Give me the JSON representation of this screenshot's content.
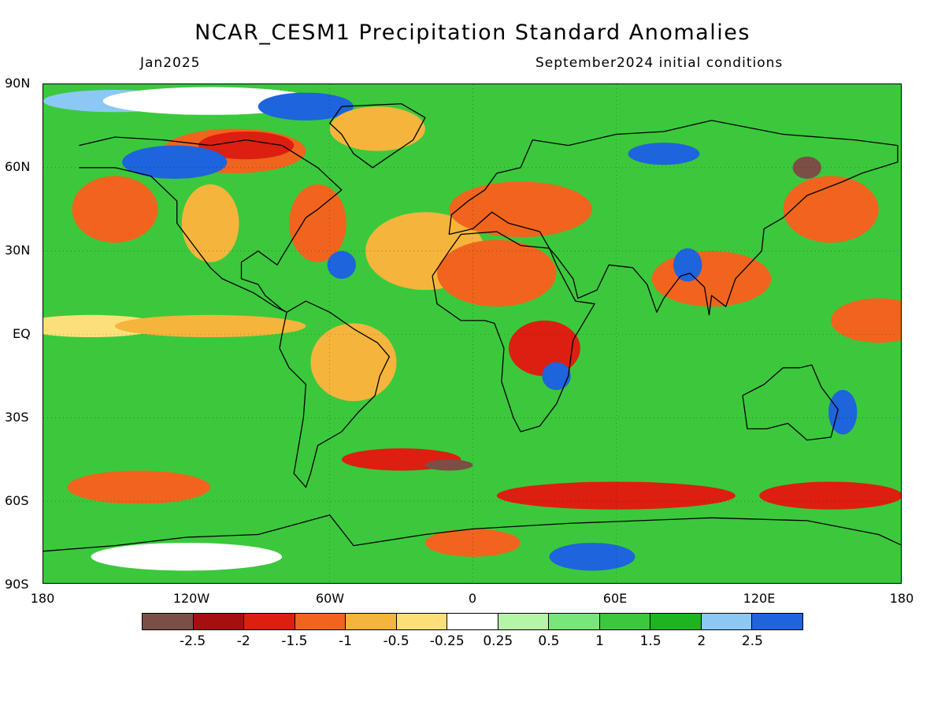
{
  "title": "NCAR_CESM1 Precipitation Standard Anomalies",
  "subtitle_left": "Jan2025",
  "subtitle_right": "September2024 initial conditions",
  "lat_labels": [
    "90N",
    "60N",
    "30N",
    "EQ",
    "30S",
    "60S",
    "90S"
  ],
  "lon_labels": [
    "180",
    "120W",
    "60W",
    "0",
    "60E",
    "120E",
    "180"
  ],
  "colorbar": {
    "colors": [
      "#7b4f46",
      "#a50f0f",
      "#dc1f10",
      "#f0641e",
      "#f5b43c",
      "#fbe07a",
      "#ffffff",
      "#b4f5a8",
      "#78e678",
      "#3cc83c",
      "#1eb41e",
      "#8cc8f5",
      "#1e64dc"
    ],
    "labels": [
      "-2.5",
      "-2",
      "-1.5",
      "-1",
      "-0.5",
      "-0.25",
      "0.25",
      "0.5",
      "1",
      "1.5",
      "2",
      "2.5"
    ]
  },
  "map": {
    "projection": "equirectangular",
    "lon_range": [
      -180,
      180
    ],
    "lat_range": [
      -90,
      90
    ],
    "background_color": "#3cc83c",
    "anomaly_regions": [
      {
        "lon": -150,
        "lat": 84,
        "rx": 30,
        "ry": 4,
        "color": "#8cc8f5"
      },
      {
        "lon": -110,
        "lat": 84,
        "rx": 45,
        "ry": 5,
        "color": "#ffffff"
      },
      {
        "lon": -70,
        "lat": 82,
        "rx": 20,
        "ry": 5,
        "color": "#1e64dc"
      },
      {
        "lon": -40,
        "lat": 74,
        "rx": 20,
        "ry": 8,
        "color": "#f5b43c"
      },
      {
        "lon": -100,
        "lat": 66,
        "rx": 30,
        "ry": 8,
        "color": "#f0641e"
      },
      {
        "lon": -95,
        "lat": 68,
        "rx": 20,
        "ry": 5,
        "color": "#dc1f10"
      },
      {
        "lon": -125,
        "lat": 62,
        "rx": 22,
        "ry": 6,
        "color": "#1e64dc"
      },
      {
        "lon": -150,
        "lat": 45,
        "rx": 18,
        "ry": 12,
        "color": "#f0641e"
      },
      {
        "lon": -110,
        "lat": 40,
        "rx": 12,
        "ry": 14,
        "color": "#f5b43c"
      },
      {
        "lon": -65,
        "lat": 40,
        "rx": 12,
        "ry": 14,
        "color": "#f0641e"
      },
      {
        "lon": -20,
        "lat": 30,
        "rx": 25,
        "ry": 14,
        "color": "#f5b43c"
      },
      {
        "lon": 20,
        "lat": 45,
        "rx": 30,
        "ry": 10,
        "color": "#f0641e"
      },
      {
        "lon": 10,
        "lat": 22,
        "rx": 25,
        "ry": 12,
        "color": "#f0641e"
      },
      {
        "lon": -55,
        "lat": 25,
        "rx": 6,
        "ry": 5,
        "color": "#1e64dc"
      },
      {
        "lon": -160,
        "lat": 3,
        "rx": 30,
        "ry": 4,
        "color": "#fbe07a"
      },
      {
        "lon": -110,
        "lat": 3,
        "rx": 40,
        "ry": 4,
        "color": "#f5b43c"
      },
      {
        "lon": -50,
        "lat": -10,
        "rx": 18,
        "ry": 14,
        "color": "#f5b43c"
      },
      {
        "lon": 30,
        "lat": -5,
        "rx": 15,
        "ry": 10,
        "color": "#dc1f10"
      },
      {
        "lon": 35,
        "lat": -15,
        "rx": 6,
        "ry": 5,
        "color": "#1e64dc"
      },
      {
        "lon": 100,
        "lat": 20,
        "rx": 25,
        "ry": 10,
        "color": "#f0641e"
      },
      {
        "lon": 90,
        "lat": 25,
        "rx": 6,
        "ry": 6,
        "color": "#1e64dc"
      },
      {
        "lon": 150,
        "lat": 45,
        "rx": 20,
        "ry": 12,
        "color": "#f0641e"
      },
      {
        "lon": 140,
        "lat": 60,
        "rx": 6,
        "ry": 4,
        "color": "#7b4f46"
      },
      {
        "lon": 80,
        "lat": 65,
        "rx": 15,
        "ry": 4,
        "color": "#1e64dc"
      },
      {
        "lon": 170,
        "lat": 5,
        "rx": 20,
        "ry": 8,
        "color": "#f0641e"
      },
      {
        "lon": 155,
        "lat": -28,
        "rx": 6,
        "ry": 8,
        "color": "#1e64dc"
      },
      {
        "lon": -30,
        "lat": -45,
        "rx": 25,
        "ry": 4,
        "color": "#dc1f10"
      },
      {
        "lon": -10,
        "lat": -47,
        "rx": 10,
        "ry": 2,
        "color": "#7b4f46"
      },
      {
        "lon": 60,
        "lat": -58,
        "rx": 50,
        "ry": 5,
        "color": "#dc1f10"
      },
      {
        "lon": 150,
        "lat": -58,
        "rx": 30,
        "ry": 5,
        "color": "#dc1f10"
      },
      {
        "lon": -140,
        "lat": -55,
        "rx": 30,
        "ry": 6,
        "color": "#f0641e"
      },
      {
        "lon": 50,
        "lat": -80,
        "rx": 18,
        "ry": 5,
        "color": "#1e64dc"
      },
      {
        "lon": 0,
        "lat": -75,
        "rx": 20,
        "ry": 5,
        "color": "#f0641e"
      },
      {
        "lon": -120,
        "lat": -80,
        "rx": 40,
        "ry": 5,
        "color": "#ffffff"
      }
    ],
    "coastlines": [
      {
        "name": "north-america",
        "points": [
          [
            -165,
            68
          ],
          [
            -150,
            71
          ],
          [
            -130,
            70
          ],
          [
            -110,
            68
          ],
          [
            -95,
            70
          ],
          [
            -80,
            68
          ],
          [
            -65,
            60
          ],
          [
            -55,
            52
          ],
          [
            -65,
            45
          ],
          [
            -70,
            42
          ],
          [
            -75,
            35
          ],
          [
            -80,
            28
          ],
          [
            -82,
            25
          ],
          [
            -90,
            30
          ],
          [
            -97,
            26
          ],
          [
            -97,
            20
          ],
          [
            -90,
            18
          ],
          [
            -87,
            14
          ],
          [
            -80,
            9
          ],
          [
            -78,
            8
          ],
          [
            -83,
            10
          ],
          [
            -92,
            15
          ],
          [
            -105,
            20
          ],
          [
            -110,
            24
          ],
          [
            -117,
            32
          ],
          [
            -124,
            40
          ],
          [
            -124,
            48
          ],
          [
            -135,
            57
          ],
          [
            -150,
            60
          ],
          [
            -165,
            60
          ]
        ]
      },
      {
        "name": "greenland",
        "points": [
          [
            -55,
            82
          ],
          [
            -30,
            83
          ],
          [
            -20,
            78
          ],
          [
            -25,
            70
          ],
          [
            -42,
            60
          ],
          [
            -50,
            65
          ],
          [
            -55,
            72
          ],
          [
            -60,
            76
          ],
          [
            -55,
            82
          ]
        ]
      },
      {
        "name": "south-america",
        "points": [
          [
            -78,
            8
          ],
          [
            -70,
            12
          ],
          [
            -60,
            8
          ],
          [
            -50,
            2
          ],
          [
            -40,
            -3
          ],
          [
            -35,
            -8
          ],
          [
            -39,
            -15
          ],
          [
            -41,
            -22
          ],
          [
            -48,
            -28
          ],
          [
            -55,
            -35
          ],
          [
            -65,
            -40
          ],
          [
            -68,
            -50
          ],
          [
            -70,
            -55
          ],
          [
            -75,
            -50
          ],
          [
            -73,
            -40
          ],
          [
            -71,
            -30
          ],
          [
            -70,
            -18
          ],
          [
            -77,
            -12
          ],
          [
            -81,
            -5
          ],
          [
            -80,
            0
          ],
          [
            -78,
            8
          ]
        ]
      },
      {
        "name": "africa",
        "points": [
          [
            -17,
            21
          ],
          [
            -10,
            30
          ],
          [
            -5,
            36
          ],
          [
            10,
            37
          ],
          [
            20,
            32
          ],
          [
            32,
            31
          ],
          [
            35,
            25
          ],
          [
            43,
            12
          ],
          [
            51,
            11
          ],
          [
            42,
            -2
          ],
          [
            40,
            -15
          ],
          [
            35,
            -25
          ],
          [
            28,
            -33
          ],
          [
            20,
            -35
          ],
          [
            17,
            -30
          ],
          [
            12,
            -17
          ],
          [
            13,
            -5
          ],
          [
            9,
            4
          ],
          [
            5,
            5
          ],
          [
            -5,
            5
          ],
          [
            -15,
            11
          ],
          [
            -17,
            21
          ]
        ]
      },
      {
        "name": "eurasia",
        "points": [
          [
            -10,
            36
          ],
          [
            -9,
            43
          ],
          [
            -2,
            48
          ],
          [
            5,
            52
          ],
          [
            10,
            58
          ],
          [
            20,
            60
          ],
          [
            25,
            70
          ],
          [
            40,
            68
          ],
          [
            60,
            72
          ],
          [
            80,
            73
          ],
          [
            100,
            77
          ],
          [
            130,
            72
          ],
          [
            160,
            70
          ],
          [
            178,
            68
          ],
          [
            178,
            62
          ],
          [
            163,
            58
          ],
          [
            155,
            55
          ],
          [
            140,
            50
          ],
          [
            130,
            42
          ],
          [
            122,
            38
          ],
          [
            121,
            30
          ],
          [
            110,
            20
          ],
          [
            106,
            10
          ],
          [
            100,
            14
          ],
          [
            99,
            7
          ],
          [
            97,
            17
          ],
          [
            91,
            22
          ],
          [
            87,
            21
          ],
          [
            80,
            13
          ],
          [
            77,
            8
          ],
          [
            73,
            18
          ],
          [
            67,
            24
          ],
          [
            57,
            25
          ],
          [
            52,
            16
          ],
          [
            44,
            13
          ],
          [
            42,
            20
          ],
          [
            35,
            28
          ],
          [
            32,
            31
          ],
          [
            28,
            37
          ],
          [
            15,
            40
          ],
          [
            8,
            44
          ],
          [
            0,
            38
          ],
          [
            -10,
            36
          ]
        ]
      },
      {
        "name": "australia",
        "points": [
          [
            113,
            -22
          ],
          [
            122,
            -18
          ],
          [
            130,
            -12
          ],
          [
            137,
            -12
          ],
          [
            142,
            -11
          ],
          [
            146,
            -19
          ],
          [
            153,
            -27
          ],
          [
            150,
            -37
          ],
          [
            140,
            -38
          ],
          [
            132,
            -32
          ],
          [
            123,
            -34
          ],
          [
            115,
            -34
          ],
          [
            113,
            -22
          ]
        ]
      },
      {
        "name": "antarctica",
        "points": [
          [
            -180,
            -78
          ],
          [
            -150,
            -76
          ],
          [
            -120,
            -73
          ],
          [
            -90,
            -72
          ],
          [
            -60,
            -65
          ],
          [
            -50,
            -76
          ],
          [
            -20,
            -72
          ],
          [
            0,
            -70
          ],
          [
            40,
            -68
          ],
          [
            70,
            -67
          ],
          [
            100,
            -66
          ],
          [
            140,
            -67
          ],
          [
            170,
            -72
          ],
          [
            180,
            -76
          ]
        ]
      }
    ]
  }
}
